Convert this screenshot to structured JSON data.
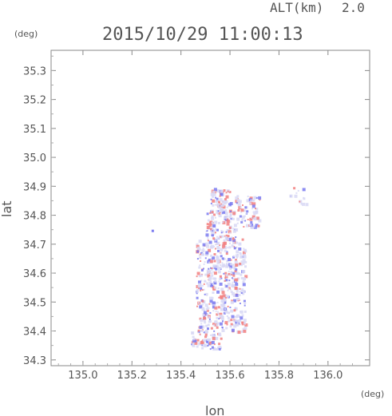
{
  "header": {
    "alt_label": "ALT(km)",
    "alt_value": "2.0",
    "timestamp": "2015/10/29 11:00:13"
  },
  "colors": {
    "axis": "#777777",
    "text": "#555555",
    "positive": "#f28080",
    "negative": "#7a7af0",
    "neutral": "#d8d8f4"
  },
  "chart_data": {
    "type": "heatmap",
    "title": "2015/10/29 11:00:13",
    "xlabel": "lon",
    "ylabel": "lat",
    "x_unit": "(deg)",
    "y_unit": "(deg)",
    "xlim": [
      134.87,
      136.17
    ],
    "ylim": [
      34.28,
      35.37
    ],
    "x_ticks": [
      "135.0",
      "135.2",
      "135.4",
      "135.6",
      "135.8",
      "136.0"
    ],
    "y_ticks": [
      "34.3",
      "34.4",
      "34.5",
      "34.6",
      "34.7",
      "34.8",
      "34.9",
      "35.0",
      "35.1",
      "35.2",
      "35.3"
    ],
    "grid": false,
    "colors_shown": [
      "red",
      "blue",
      "pale blue"
    ],
    "echo_extent": {
      "lon_range": [
        135.4,
        135.92
      ],
      "lat_range": [
        34.34,
        34.92
      ]
    }
  }
}
